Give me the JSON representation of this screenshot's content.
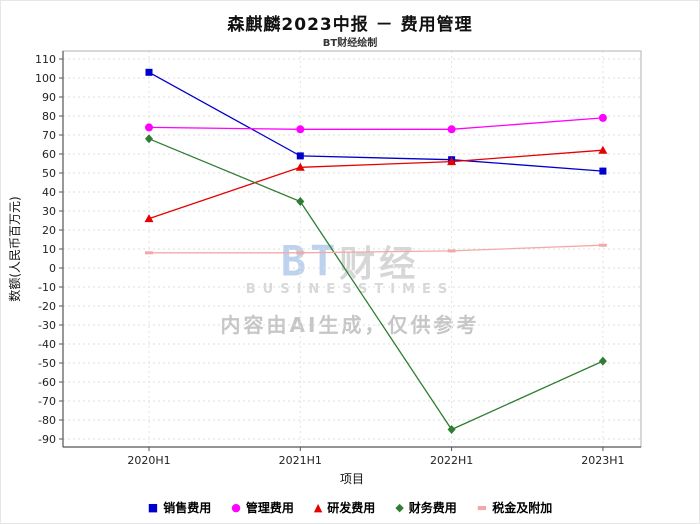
{
  "watermark": {
    "brand_prefix": "BT",
    "brand_suffix": "财经",
    "brand_sub": "BUSINESSTIMES",
    "notice": "内容由AI生成，仅供参考"
  },
  "chart_data": {
    "type": "line",
    "title": "森麒麟2023中报 － 费用管理",
    "subtitle": "BT财经绘制",
    "xlabel": "项目",
    "ylabel": "数额(人民币百万元)",
    "categories": [
      "2020H1",
      "2021H1",
      "2022H1",
      "2023H1"
    ],
    "ylim": [
      -90,
      110
    ],
    "ytick_step": 10,
    "grid": true,
    "legend_position": "bottom",
    "series": [
      {
        "name": "销售费用",
        "color": "#0000cd",
        "marker": "square",
        "values": [
          103,
          59,
          57,
          51
        ]
      },
      {
        "name": "管理费用",
        "color": "#ff00ff",
        "marker": "circle",
        "values": [
          74,
          73,
          73,
          79
        ]
      },
      {
        "name": "研发费用",
        "color": "#e60000",
        "marker": "triangle",
        "values": [
          26,
          53,
          56,
          62
        ]
      },
      {
        "name": "财务费用",
        "color": "#2e7d32",
        "marker": "diamond",
        "values": [
          68,
          35,
          -85,
          -49
        ]
      },
      {
        "name": "税金及附加",
        "color": "#f4a9a9",
        "marker": "dash",
        "values": [
          8,
          8,
          9,
          12
        ]
      }
    ]
  }
}
